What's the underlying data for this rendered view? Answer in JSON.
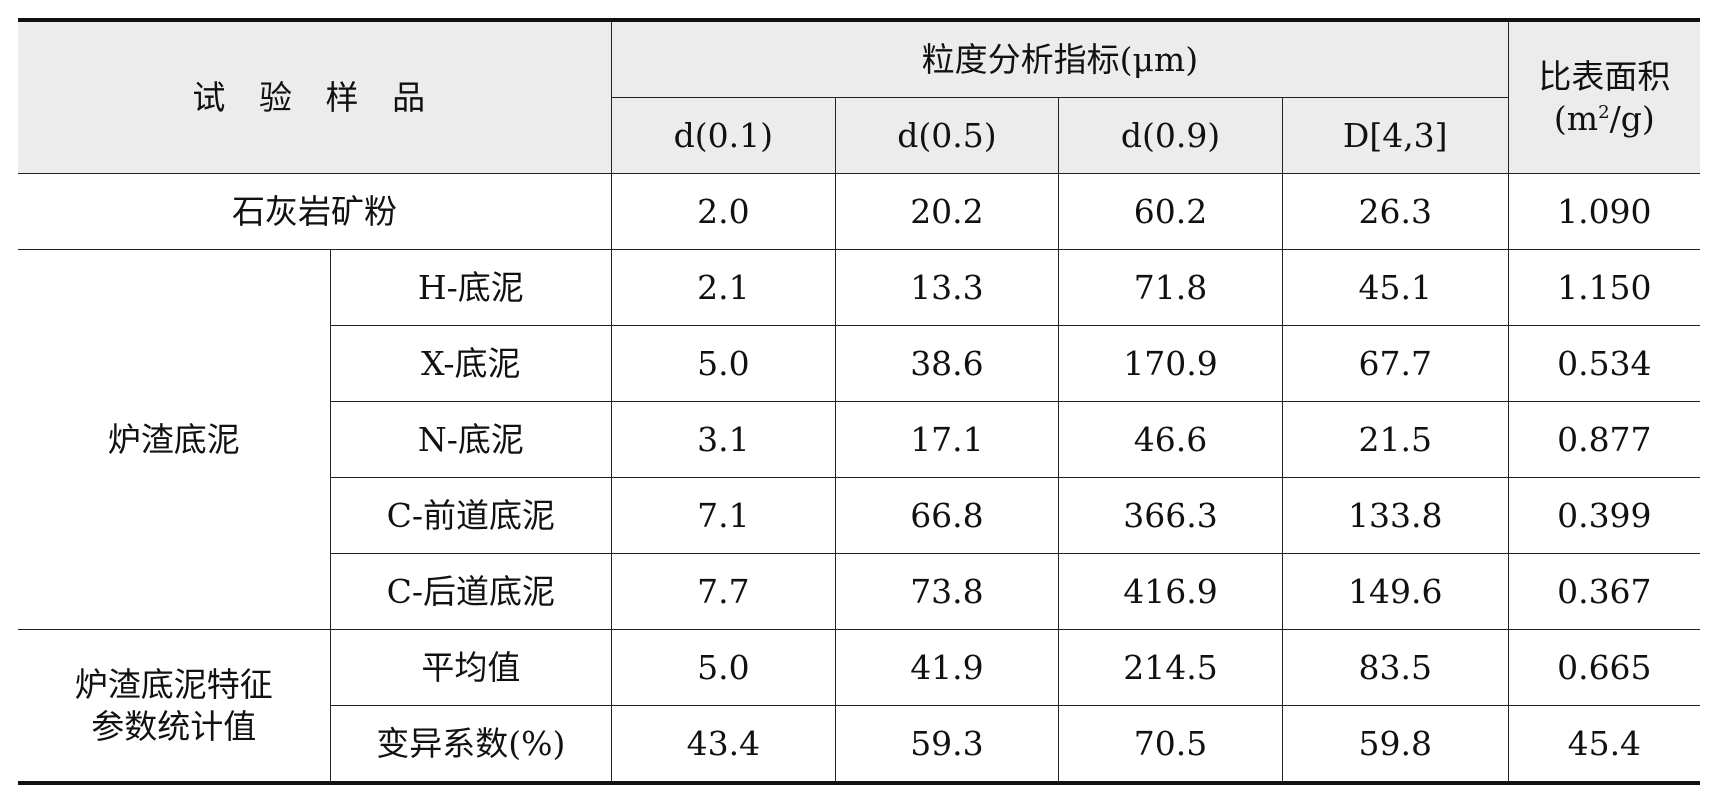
{
  "header": {
    "sample": "试 验 样 品",
    "group": "粒度分析指标(μm)",
    "cols": [
      "d(0.1)",
      "d(0.5)",
      "d(0.9)",
      "D[4,3]"
    ],
    "ssa_line1": "比表面积",
    "ssa_unit_pre": "(m",
    "ssa_unit_sup": "2",
    "ssa_unit_post": "/g)"
  },
  "limestone": {
    "label": "石灰岩矿粉",
    "values": [
      "2.0",
      "20.2",
      "60.2",
      "26.3",
      "1.090"
    ]
  },
  "slag": {
    "group": "炉渣底泥",
    "rows": [
      {
        "label": "H-底泥",
        "values": [
          "2.1",
          "13.3",
          "71.8",
          "45.1",
          "1.150"
        ]
      },
      {
        "label": "X-底泥",
        "values": [
          "5.0",
          "38.6",
          "170.9",
          "67.7",
          "0.534"
        ]
      },
      {
        "label": "N-底泥",
        "values": [
          "3.1",
          "17.1",
          "46.6",
          "21.5",
          "0.877"
        ]
      },
      {
        "label": "C-前道底泥",
        "values": [
          "7.1",
          "66.8",
          "366.3",
          "133.8",
          "0.399"
        ]
      },
      {
        "label": "C-后道底泥",
        "values": [
          "7.7",
          "73.8",
          "416.9",
          "149.6",
          "0.367"
        ]
      }
    ]
  },
  "stats": {
    "group_line1": "炉渣底泥特征",
    "group_line2": "参数统计值",
    "rows": [
      {
        "label": "平均值",
        "values": [
          "5.0",
          "41.9",
          "214.5",
          "83.5",
          "0.665"
        ]
      },
      {
        "label": "变异系数(%)",
        "values": [
          "43.4",
          "59.3",
          "70.5",
          "59.8",
          "45.4"
        ]
      }
    ]
  }
}
